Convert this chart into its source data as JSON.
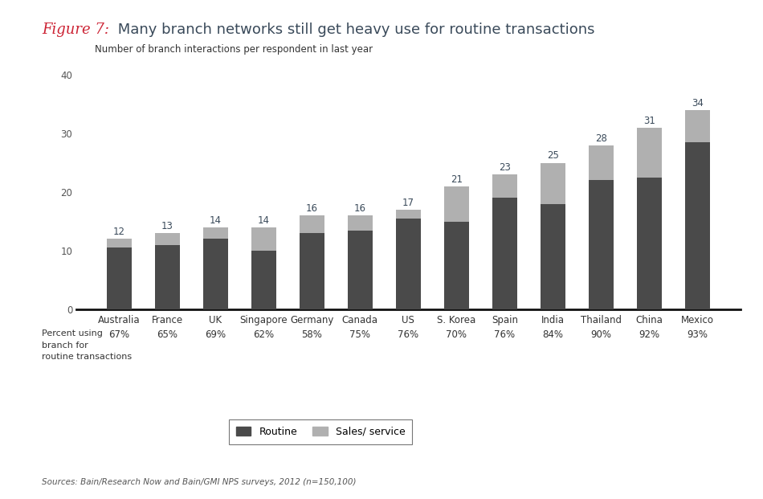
{
  "categories": [
    "Australia",
    "France",
    "UK",
    "Singapore",
    "Germany",
    "Canada",
    "US",
    "S. Korea",
    "Spain",
    "India",
    "Thailand",
    "China",
    "Mexico"
  ],
  "routine_values": [
    10.5,
    11.0,
    12.0,
    10.0,
    13.0,
    13.5,
    15.5,
    15.0,
    19.0,
    18.0,
    22.0,
    22.5,
    28.5
  ],
  "sales_values": [
    1.5,
    2.0,
    2.0,
    4.0,
    3.0,
    2.5,
    1.5,
    6.0,
    4.0,
    7.0,
    6.0,
    8.5,
    5.5
  ],
  "totals": [
    12,
    13,
    14,
    14,
    16,
    16,
    17,
    21,
    23,
    25,
    28,
    31,
    34
  ],
  "percent_labels": [
    "67%",
    "65%",
    "69%",
    "62%",
    "58%",
    "75%",
    "76%",
    "70%",
    "76%",
    "84%",
    "90%",
    "92%",
    "93%"
  ],
  "routine_color": "#4a4a4a",
  "sales_color": "#b0b0b0",
  "title_italic": "Figure 7:",
  "title_italic_color": "#cc2233",
  "title_normal": " Many branch networks still get heavy use for routine transactions",
  "title_color": "#3a4a5a",
  "ylabel_text": "Number of branch interactions per respondent in last year",
  "ylim": [
    0,
    40
  ],
  "yticks": [
    0,
    10,
    20,
    30,
    40
  ],
  "total_label_color": "#3a4a5a",
  "percent_label_color": "#333333",
  "legend_routine": "Routine",
  "legend_sales": "Sales/ service",
  "source_text": "Sources: Bain/Research Now and Bain/GMI NPS surveys, 2012 (n=150,100)",
  "percent_header": "Percent using\nbranch for\nroutine transactions",
  "background_color": "#ffffff",
  "bar_width": 0.52
}
